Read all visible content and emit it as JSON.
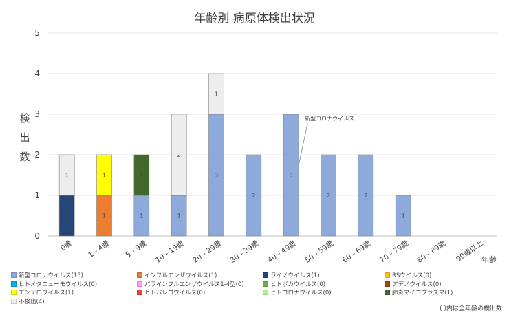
{
  "title": "年齢別 病原体検出状況",
  "chart_data": {
    "type": "bar",
    "stacked": true,
    "title": "年齢別 病原体検出状況",
    "ylabel": "検出数",
    "xlabel": "年齢",
    "ylim": [
      0,
      5
    ],
    "yticks": [
      0,
      1,
      2,
      3,
      4,
      5
    ],
    "grid": true,
    "categories": [
      "0歳",
      "1 - 4歳",
      "5 - 9歳",
      "10 - 19歳",
      "20 - 29歳",
      "30 - 39歳",
      "40 - 49歳",
      "50 - 59歳",
      "60 - 69歳",
      "70 - 79歳",
      "80 - 89歳",
      "90歳以上"
    ],
    "series": [
      {
        "name": "新型コロナウイルス",
        "color": "#8eaadb",
        "values": [
          0,
          0,
          1,
          1,
          3,
          2,
          3,
          2,
          2,
          1,
          0,
          0
        ]
      },
      {
        "name": "インフルエンザウイルス",
        "color": "#ed7d31",
        "values": [
          0,
          1,
          0,
          0,
          0,
          0,
          0,
          0,
          0,
          0,
          0,
          0
        ]
      },
      {
        "name": "ライノウイルス",
        "color": "#264478",
        "values": [
          1,
          0,
          0,
          0,
          0,
          0,
          0,
          0,
          0,
          0,
          0,
          0
        ]
      },
      {
        "name": "肺炎マイコプラズマ",
        "color": "#43682b",
        "values": [
          0,
          0,
          1,
          0,
          0,
          0,
          0,
          0,
          0,
          0,
          0,
          0
        ]
      },
      {
        "name": "エンテロウイルス",
        "color": "#ffff00",
        "values": [
          0,
          1,
          0,
          0,
          0,
          0,
          0,
          0,
          0,
          0,
          0,
          0
        ]
      },
      {
        "name": "不検出",
        "color": "#ededed",
        "values": [
          1,
          0,
          0,
          2,
          1,
          0,
          0,
          0,
          0,
          0,
          0,
          0
        ]
      }
    ],
    "annotation": {
      "text": "新型コロナウイルス",
      "category": "40 - 49歳"
    },
    "legend": [
      {
        "label": "新型コロナウイルス(15)",
        "color": "#8eaadb"
      },
      {
        "label": "インフルエンザウイルス(1)",
        "color": "#ed7d31"
      },
      {
        "label": "ライノウイルス(1)",
        "color": "#264478"
      },
      {
        "label": "RSウイルス(0)",
        "color": "#ffc000"
      },
      {
        "label": "ヒトメタニューモウイルス(0)",
        "color": "#00b0f0"
      },
      {
        "label": "パラインフルエンザウイルス1-4型(0)",
        "color": "#ff99ff"
      },
      {
        "label": "ヒトボカウイルス(0)",
        "color": "#70ad47"
      },
      {
        "label": "アデノウイルス(0)",
        "color": "#9e480e"
      },
      {
        "label": "エンテロウイルス(1)",
        "color": "#ffff00"
      },
      {
        "label": "ヒトパレコウイルス(0)",
        "color": "#ff3b3b"
      },
      {
        "label": "ヒトコロナウイルス(0)",
        "color": "#a9f28c"
      },
      {
        "label": "肺炎マイコプラズマ(1)",
        "color": "#43682b"
      },
      {
        "label": "不検出(4)",
        "color": "#ededed"
      }
    ],
    "legend_position": "bottom"
  },
  "note": "( )内は全年齢の検出数"
}
